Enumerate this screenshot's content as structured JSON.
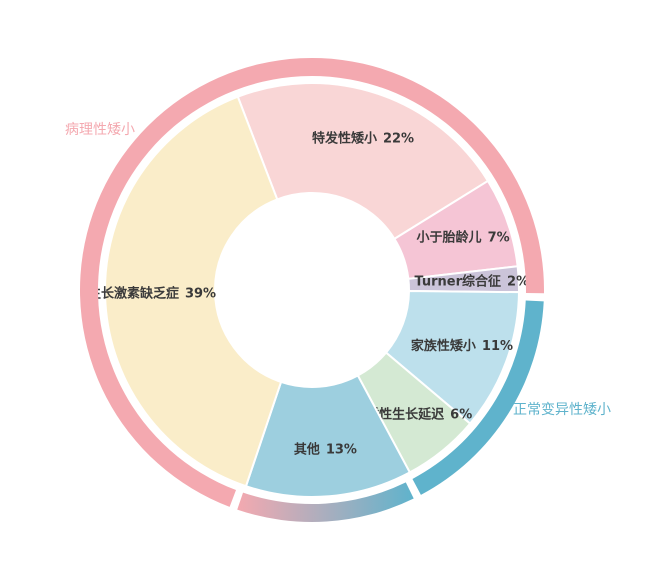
{
  "chart_data": {
    "type": "nested-donut",
    "inner": {
      "categories": [
        "特发性矮小",
        "小于胎龄儿",
        "Turner综合征",
        "家族性矮小",
        "体质性生长延迟",
        "其他",
        "生长激素缺乏症"
      ],
      "values": [
        22,
        7,
        2,
        11,
        6,
        13,
        39
      ],
      "value_labels": [
        "22%",
        "7%",
        "2%",
        "11%",
        "6%",
        "13%",
        "39%"
      ],
      "colors": [
        "#f9d6d6",
        "#f5c5d5",
        "#cbc4d9",
        "#bde0ec",
        "#d4e9d3",
        "#9dcfdf",
        "#faedc9"
      ]
    },
    "outer": {
      "categories": [
        null,
        "病理性矮小",
        "正常变异性矮小"
      ],
      "values": [
        13,
        70,
        17
      ],
      "colors": [
        [
          "#f4a9b0",
          "#5fb3cc"
        ],
        "#f4a9b0",
        "#5fb3cc"
      ]
    }
  }
}
